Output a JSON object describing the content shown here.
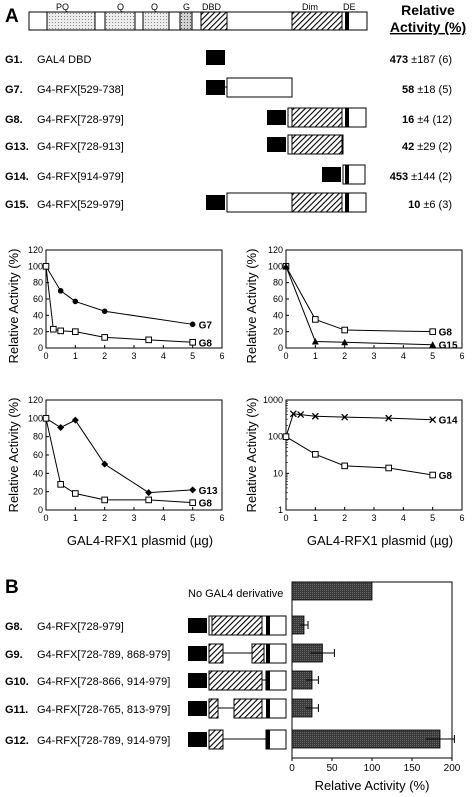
{
  "panelA": {
    "letter": "A",
    "header": {
      "line1": "Relative",
      "line2": "Activity (%)"
    },
    "domains": [
      "PQ",
      "Q",
      "Q",
      "G",
      "DBD",
      "Dim",
      "DE"
    ],
    "constructs": [
      {
        "id": "G1.",
        "name": "GAL4 DBD",
        "activity": "473",
        "error": "±187",
        "n": "(6)"
      },
      {
        "id": "G7.",
        "name": "G4-RFX[529-738]",
        "activity": "58",
        "error": "±18",
        "n": "(5)"
      },
      {
        "id": "G8.",
        "name": "G4-RFX[728-979]",
        "activity": "16",
        "error": "±4",
        "n": "(12)"
      },
      {
        "id": "G13.",
        "name": "G4-RFX[728-913]",
        "activity": "42",
        "error": "±29",
        "n": "(2)"
      },
      {
        "id": "G14.",
        "name": "G4-RFX[914-979]",
        "activity": "453",
        "error": "±144",
        "n": "(2)"
      },
      {
        "id": "G15.",
        "name": "G4-RFX[529-979]",
        "activity": "10",
        "error": "±6",
        "n": "(3)"
      }
    ],
    "ylabel": "Relative Activity (%)",
    "xlabel": "GAL4-RFX1 plasmid (µg)"
  },
  "panelB": {
    "letter": "B",
    "no_gal4_label": "No GAL4 derivative",
    "xlabel": "Relative Activity (%)",
    "constructs": [
      {
        "id": "G8.",
        "name": "G4-RFX[728-979]"
      },
      {
        "id": "G9.",
        "name": "G4-RFX[728-789, 868-979]"
      },
      {
        "id": "G10.",
        "name": "G4-RFX[728-866, 914-979]"
      },
      {
        "id": "G11.",
        "name": "G4-RFX[728-765, 813-979]"
      },
      {
        "id": "G12.",
        "name": "G4-RFX[728-789, 914-979]"
      }
    ]
  },
  "chart_data": [
    {
      "type": "line",
      "xlim": [
        0,
        6
      ],
      "ylim": [
        0,
        120
      ],
      "xticks": [
        0,
        1,
        2,
        3,
        4,
        5,
        6
      ],
      "yticks": [
        0,
        20,
        40,
        60,
        80,
        100,
        120
      ],
      "series": [
        {
          "name": "G7",
          "marker": "filled-circle",
          "x": [
            0,
            0.5,
            1,
            2,
            5
          ],
          "y": [
            100,
            70,
            57,
            45,
            29
          ]
        },
        {
          "name": "G8",
          "marker": "open-square",
          "x": [
            0,
            0.25,
            0.5,
            1,
            2,
            3.5,
            5
          ],
          "y": [
            100,
            23,
            21,
            20,
            13,
            10,
            7
          ]
        }
      ]
    },
    {
      "type": "line",
      "xlim": [
        0,
        6
      ],
      "ylim": [
        0,
        120
      ],
      "xticks": [
        0,
        1,
        2,
        3,
        4,
        5,
        6
      ],
      "yticks": [
        0,
        20,
        40,
        60,
        80,
        100,
        120
      ],
      "series": [
        {
          "name": "G8",
          "marker": "open-square",
          "x": [
            0,
            1,
            2,
            5
          ],
          "y": [
            100,
            35,
            22,
            20
          ]
        },
        {
          "name": "G15",
          "marker": "filled-triangle",
          "x": [
            0,
            1,
            2,
            5
          ],
          "y": [
            100,
            8,
            7,
            4
          ]
        }
      ]
    },
    {
      "type": "line",
      "xlim": [
        0,
        6
      ],
      "ylim": [
        0,
        120
      ],
      "xticks": [
        0,
        1,
        2,
        3,
        4,
        5,
        6
      ],
      "yticks": [
        0,
        20,
        40,
        60,
        80,
        100,
        120
      ],
      "series": [
        {
          "name": "G13",
          "marker": "filled-diamond",
          "x": [
            0,
            0.5,
            1,
            2,
            3.5,
            5
          ],
          "y": [
            100,
            90,
            98,
            50,
            19,
            22
          ]
        },
        {
          "name": "G8",
          "marker": "open-square",
          "x": [
            0,
            0.5,
            1,
            2,
            3.5,
            5
          ],
          "y": [
            100,
            28,
            18,
            11,
            11,
            8
          ]
        }
      ]
    },
    {
      "type": "line",
      "xlim": [
        0,
        6
      ],
      "ylim": [
        1,
        1000
      ],
      "yscale": "log",
      "xticks": [
        0,
        1,
        2,
        3,
        4,
        5,
        6
      ],
      "yticks": [
        1,
        10,
        100,
        1000
      ],
      "series": [
        {
          "name": "G14",
          "marker": "cross",
          "x": [
            0,
            0.25,
            0.5,
            1,
            2,
            3.5,
            5
          ],
          "y": [
            100,
            420,
            400,
            360,
            340,
            320,
            290
          ]
        },
        {
          "name": "G8",
          "marker": "open-square",
          "x": [
            0,
            1,
            2,
            3.5,
            5
          ],
          "y": [
            100,
            33,
            16,
            14,
            9
          ]
        }
      ]
    },
    {
      "type": "bar",
      "orientation": "horizontal",
      "xlim": [
        0,
        200
      ],
      "xticks": [
        0,
        50,
        100,
        150,
        200
      ],
      "categories": [
        "No GAL4 derivative",
        "G8.",
        "G9.",
        "G10.",
        "G11.",
        "G12."
      ],
      "values": [
        100,
        15,
        38,
        25,
        25,
        185
      ],
      "errors": [
        0,
        5,
        15,
        8,
        8,
        18
      ]
    }
  ]
}
